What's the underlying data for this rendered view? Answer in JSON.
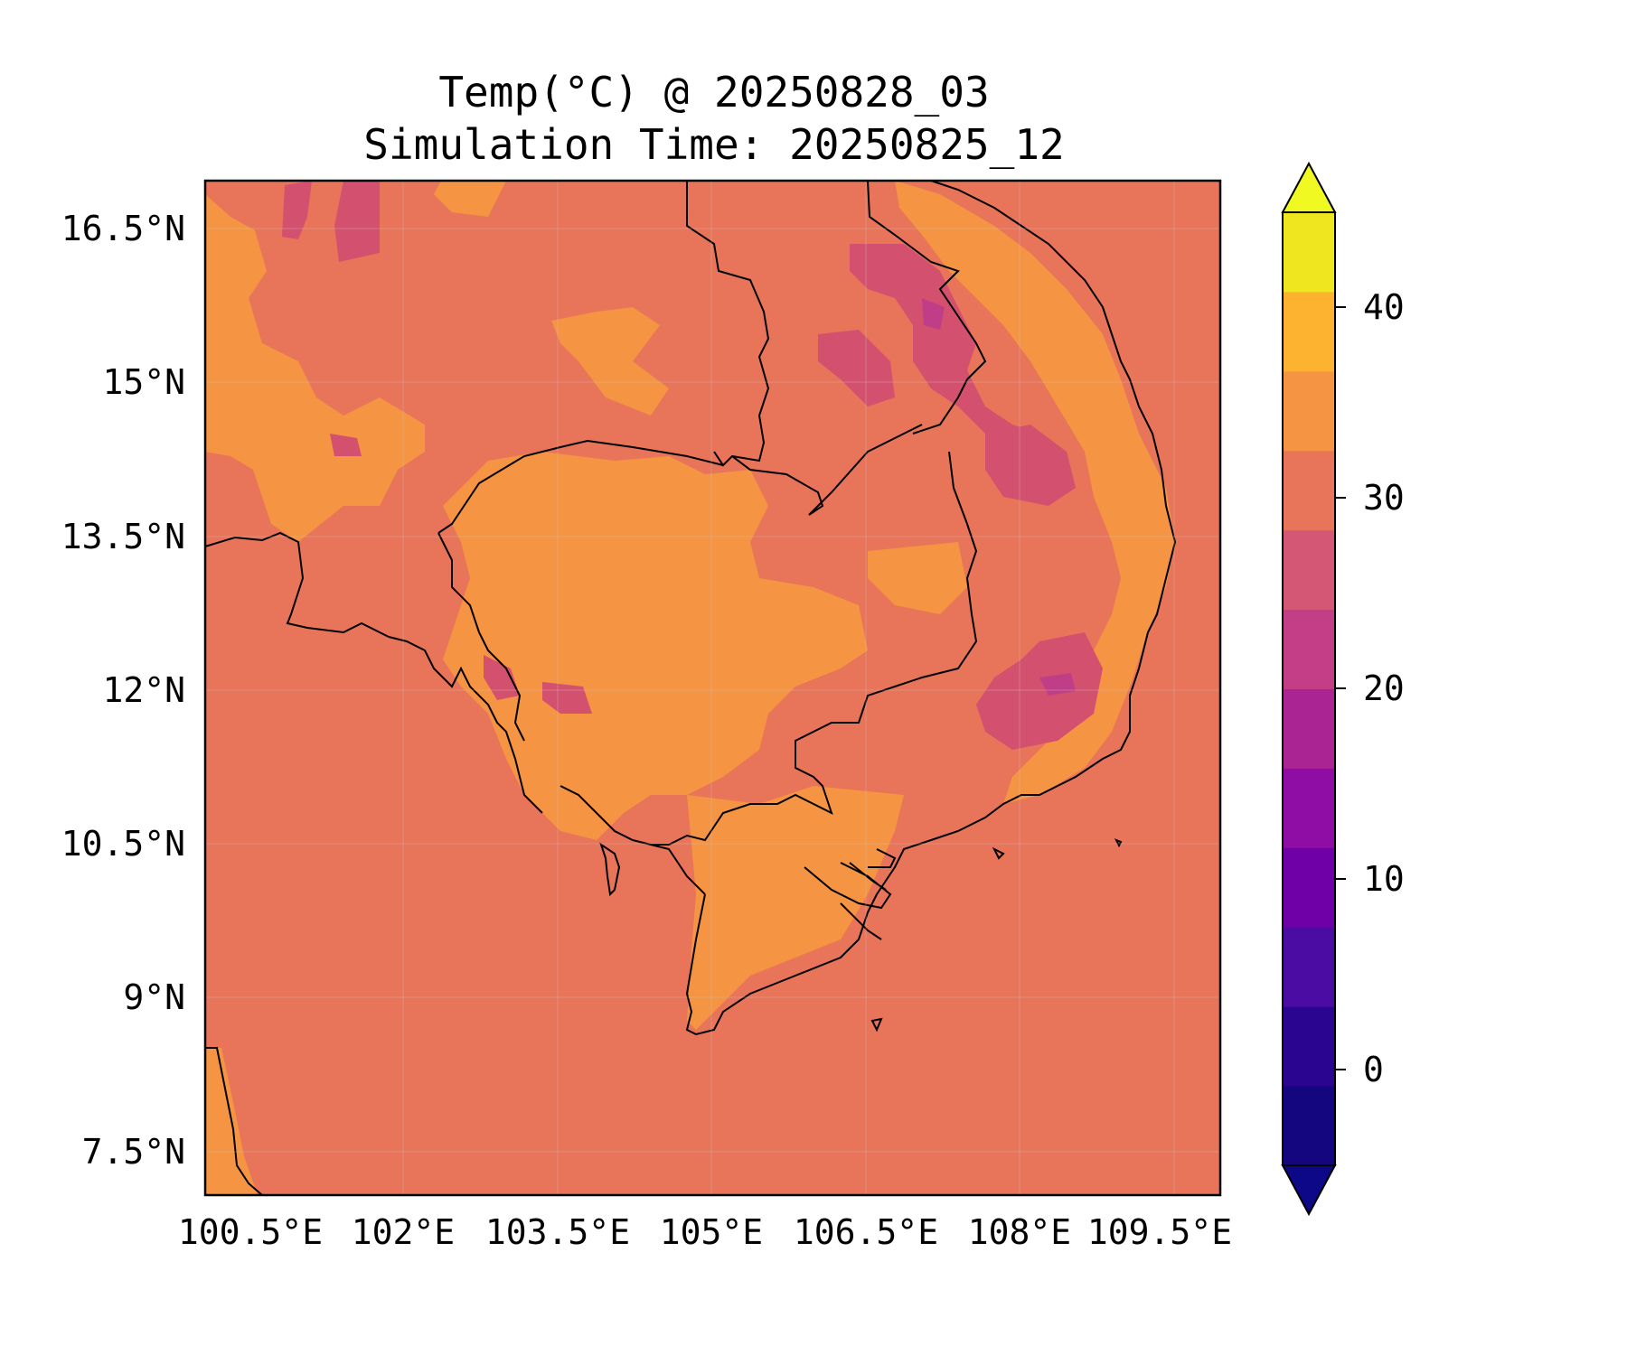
{
  "title": {
    "line1": "Temp(°C) @ 20250828_03",
    "line2": "Simulation Time: 20250825_12"
  },
  "map": {
    "x_ticks": [
      "100.5°E",
      "102°E",
      "103.5°E",
      "105°E",
      "106.5°E",
      "108°E",
      "109.5°E"
    ],
    "y_ticks": [
      "16.5°N",
      "15°N",
      "13.5°N",
      "12°N",
      "10.5°N",
      "9°N",
      "7.5°N"
    ],
    "background_color": "#e8745a",
    "land_warm_color": "#f59442",
    "cool_patch_color": "#d3506e",
    "coolest_patch_color": "#c03e88"
  },
  "colorbar": {
    "tick_labels": [
      "40",
      "30",
      "20",
      "10",
      "0"
    ],
    "colors": [
      "#14067f",
      "#2a058f",
      "#4a0ca2",
      "#6f00a8",
      "#8f0da4",
      "#ab2494",
      "#c33e86",
      "#d55776",
      "#e8745a",
      "#f59442",
      "#fdb32f",
      "#f0e620"
    ],
    "under_color": "#0d0887",
    "over_color": "#f0f921"
  }
}
